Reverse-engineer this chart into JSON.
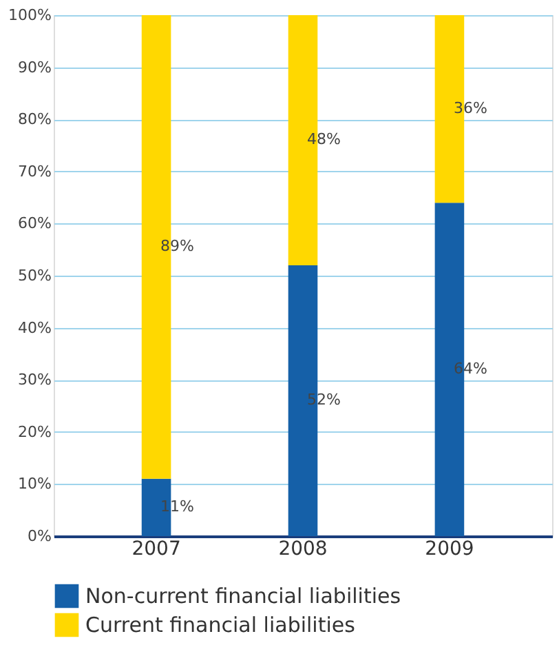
{
  "chart_data": {
    "type": "bar",
    "stacked": true,
    "categories": [
      "2007",
      "2008",
      "2009"
    ],
    "series": [
      {
        "name": "Non-current financial liabilities",
        "color": "#1560a8",
        "values": [
          11,
          52,
          64
        ],
        "value_labels": [
          "11%",
          "52%",
          "64%"
        ]
      },
      {
        "name": "Current financial liabilities",
        "color": "#ffd800",
        "values": [
          89,
          48,
          36
        ],
        "value_labels": [
          "89%",
          "48%",
          "36%"
        ]
      }
    ],
    "ylim": [
      0,
      100
    ],
    "yticks": [
      {
        "value": 0,
        "label": "0%"
      },
      {
        "value": 10,
        "label": "10%"
      },
      {
        "value": 20,
        "label": "20%"
      },
      {
        "value": 30,
        "label": "30%"
      },
      {
        "value": 40,
        "label": "40%"
      },
      {
        "value": 50,
        "label": "50%"
      },
      {
        "value": 60,
        "label": "60%"
      },
      {
        "value": 70,
        "label": "70%"
      },
      {
        "value": 80,
        "label": "80%"
      },
      {
        "value": 90,
        "label": "90%"
      },
      {
        "value": 100,
        "label": "100%"
      }
    ],
    "grid": "y",
    "legend": "bottom"
  }
}
